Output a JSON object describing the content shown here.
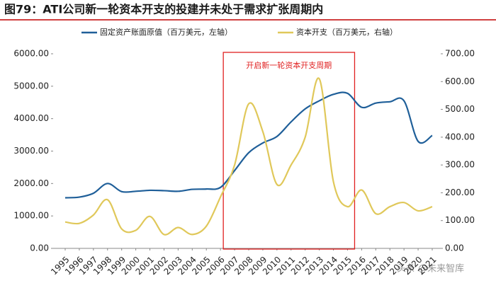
{
  "chart_data": {
    "type": "line",
    "title": "图79：ATI公司新一轮资本开支的投建并未处于需求扩张周期内",
    "annotation": "开启新一轮资本开支周期",
    "watermark": "头条 @未来智库",
    "categories": [
      "1995",
      "1996",
      "1997",
      "1998",
      "1999",
      "2000",
      "2001",
      "2002",
      "2003",
      "2004",
      "2005",
      "2006",
      "2007",
      "2008",
      "2009",
      "2010",
      "2011",
      "2012",
      "2013",
      "2014",
      "2015",
      "2016",
      "2017",
      "2018",
      "2019",
      "2020",
      "2021"
    ],
    "series": [
      {
        "name": "固定资产账面原值（百万美元，左轴）",
        "color": "#1f5f99",
        "axis": "y",
        "values": [
          1560,
          1580,
          1700,
          2000,
          1750,
          1760,
          1790,
          1780,
          1760,
          1820,
          1830,
          1880,
          2400,
          2950,
          3250,
          3450,
          3900,
          4300,
          4550,
          4750,
          4780,
          4350,
          4480,
          4520,
          4550,
          3300,
          3480
        ]
      },
      {
        "name": "资本开支（百万美元，右轴）",
        "color": "#e0c85a",
        "axis": "y2",
        "values": [
          95,
          90,
          120,
          175,
          70,
          65,
          115,
          50,
          75,
          50,
          80,
          185,
          300,
          520,
          420,
          230,
          300,
          400,
          610,
          240,
          150,
          210,
          125,
          150,
          165,
          135,
          150
        ]
      }
    ],
    "ylim": [
      0,
      6000
    ],
    "yticks": [
      {
        "value": 0,
        "label": "0.00"
      },
      {
        "value": 1000,
        "label": "1000.00"
      },
      {
        "value": 2000,
        "label": "2000.00"
      },
      {
        "value": 3000,
        "label": "3000.00"
      },
      {
        "value": 4000,
        "label": "4000.00"
      },
      {
        "value": 5000,
        "label": "5000.00"
      },
      {
        "value": 6000,
        "label": "6000.00"
      }
    ],
    "y2lim": [
      0,
      700
    ],
    "y2ticks": [
      {
        "value": 0,
        "label": "0.00"
      },
      {
        "value": 100,
        "label": "100.00"
      },
      {
        "value": 200,
        "label": "200.00"
      },
      {
        "value": 300,
        "label": "300.00"
      },
      {
        "value": 400,
        "label": "400.00"
      },
      {
        "value": 500,
        "label": "500.00"
      },
      {
        "value": 600,
        "label": "600.00"
      },
      {
        "value": 700,
        "label": "700.00"
      }
    ]
  }
}
